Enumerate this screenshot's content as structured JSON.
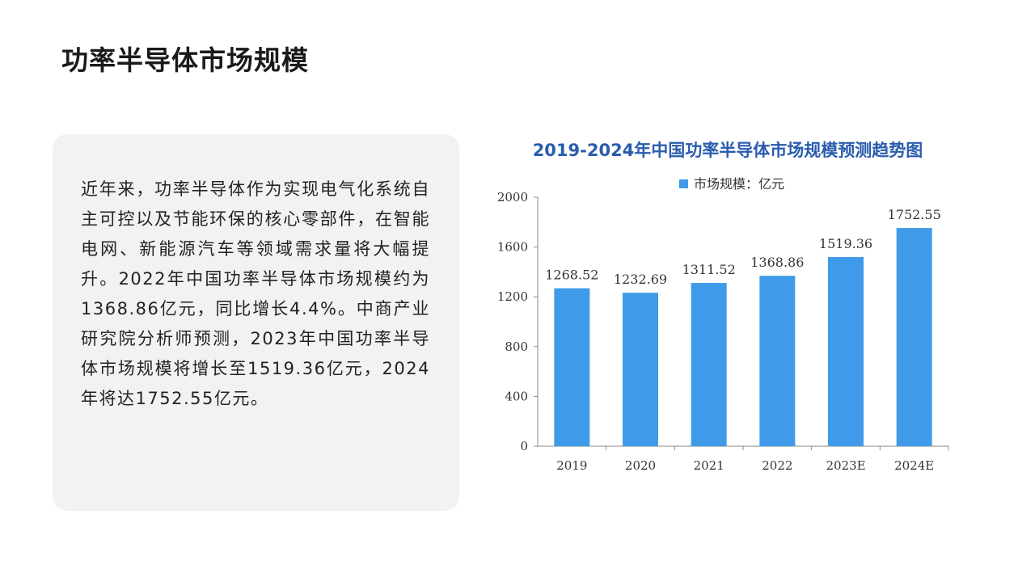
{
  "page": {
    "title": "功率半导体市场规模",
    "body": "近年来，功率半导体作为实现电气化系统自主可控以及节能环保的核心零部件，在智能电网、新能源汽车等领域需求量将大幅提升。2022年中国功率半导体市场规模约为1368.86亿元，同比增长4.4%。中商产业研究院分析师预测，2023年中国功率半导体市场规模将增长至1519.36亿元，2024年将达1752.55亿元。"
  },
  "colors": {
    "bar": "#3f9be9",
    "title": "#2a5cae",
    "panel": "#f2f2f2",
    "axis": "#888888"
  },
  "chart_data": {
    "type": "bar",
    "title": "2019-2024年中国功率半导体市场规模预测趋势图",
    "categories": [
      "2019",
      "2020",
      "2021",
      "2022",
      "2023E",
      "2024E"
    ],
    "series": [
      {
        "name": "市场规模：亿元",
        "values": [
          1268.52,
          1232.69,
          1311.52,
          1368.86,
          1519.36,
          1752.55
        ],
        "labels": [
          "1268.52",
          "1232.69",
          "1311.52",
          "1368.86",
          "1519.36",
          "1752.55"
        ]
      }
    ],
    "ylim": [
      0,
      2000
    ],
    "yticks": [
      "0",
      "400",
      "800",
      "1200",
      "1600",
      "2000"
    ],
    "legend": "top",
    "grid": false
  }
}
